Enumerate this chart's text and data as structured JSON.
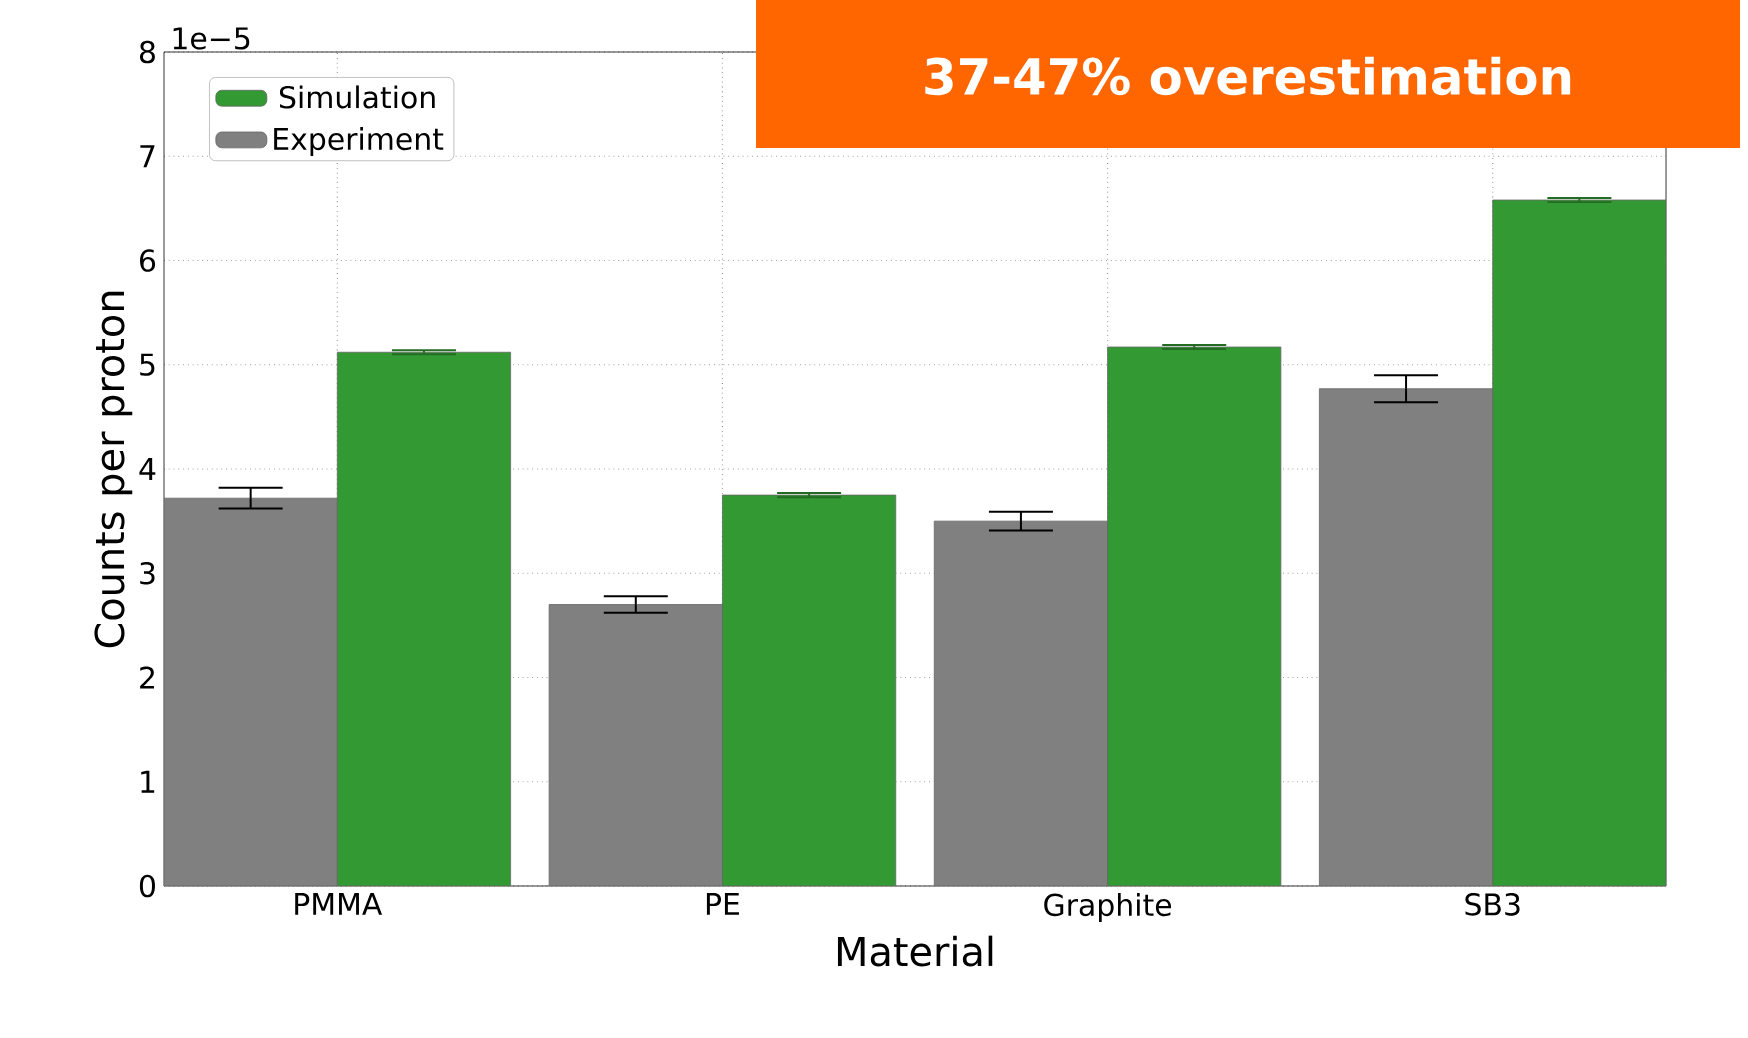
{
  "chart_data": {
    "type": "bar",
    "xlabel": "Material",
    "ylabel": "Counts per proton",
    "categories": [
      "PMMA",
      "PE",
      "Graphite",
      "SB3"
    ],
    "series": [
      {
        "name": "Experiment",
        "color": "#808080",
        "values": [
          3.72,
          2.7,
          3.5,
          4.77
        ],
        "errors": [
          0.1,
          0.08,
          0.09,
          0.13
        ]
      },
      {
        "name": "Simulation",
        "color": "#339933",
        "values": [
          5.12,
          3.75,
          5.17,
          6.58
        ],
        "errors": [
          0.02,
          0.02,
          0.02,
          0.02
        ]
      }
    ],
    "ylim": [
      0,
      8
    ],
    "yticks": [
      0,
      1,
      2,
      3,
      4,
      5,
      6,
      7,
      8
    ],
    "grid": true,
    "legend": "top left",
    "annotations": [
      "37-47% overestimation",
      "1e−5"
    ]
  }
}
